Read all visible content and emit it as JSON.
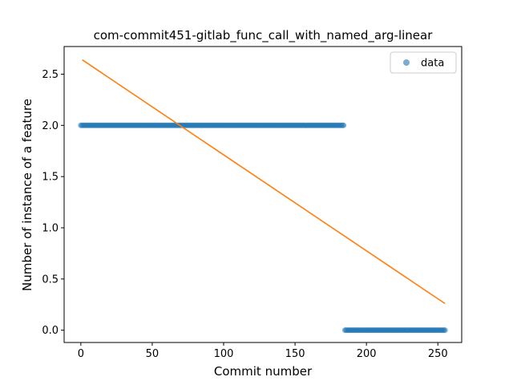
{
  "chart_data": {
    "type": "scatter",
    "title": "com-commit451-gitlab_func_call_with_named_arg-linear",
    "xlabel": "Commit number",
    "ylabel": "Number of instance of a feature",
    "xlim": [
      -11.7,
      266.7
    ],
    "ylim": [
      -0.12,
      2.77
    ],
    "xticks": [
      0,
      50,
      100,
      150,
      200,
      250
    ],
    "xtick_labels": [
      "0",
      "50",
      "100",
      "150",
      "200",
      "250"
    ],
    "yticks": [
      0.0,
      0.5,
      1.0,
      1.5,
      2.0,
      2.5
    ],
    "ytick_labels": [
      "0.0",
      "0.5",
      "1.0",
      "1.5",
      "2.0",
      "2.5"
    ],
    "grid": false,
    "legend_position": "top-right",
    "series": [
      {
        "name": "data",
        "kind": "scatter",
        "color": "#1f77b4",
        "segments": [
          {
            "x_start": 0,
            "x_end": 184,
            "y": 2
          },
          {
            "x_start": 185,
            "x_end": 255,
            "y": 0
          }
        ]
      },
      {
        "kind": "line",
        "color": "#ff7f0e",
        "x": [
          1,
          255
        ],
        "y": [
          2.64,
          0.26
        ]
      }
    ]
  }
}
